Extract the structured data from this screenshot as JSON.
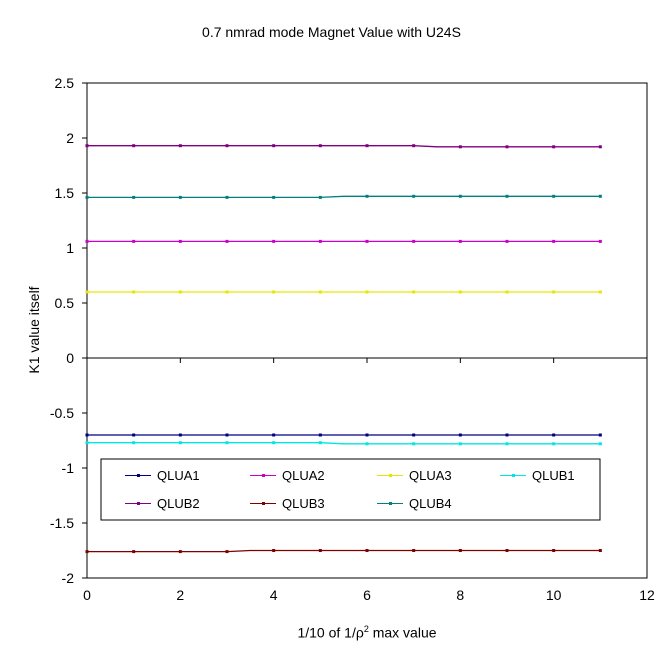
{
  "chart_data": {
    "type": "line",
    "title": "0.7 nmrad mode Magnet Value with U24S",
    "xlabel_pre": "1/10 of 1/ρ",
    "xlabel_sup": "2",
    "xlabel_post": " max value",
    "ylabel": "K1 value itself",
    "xlim": [
      0,
      12
    ],
    "ylim": [
      -2,
      2.5
    ],
    "xticks": [
      0,
      2,
      4,
      6,
      8,
      10,
      12
    ],
    "yticks": [
      -2,
      -1.5,
      -1,
      -0.5,
      0,
      0.5,
      1,
      1.5,
      2,
      2.5
    ],
    "ytick_labels": [
      "-2",
      "-1.5",
      "-1",
      "-0.5",
      "0",
      "0.5",
      "1",
      "1.5",
      "2",
      "2.5"
    ],
    "grid": false,
    "legend_position": "lower-center",
    "x": [
      0,
      0.5,
      1,
      1.5,
      2,
      2.5,
      3,
      3.5,
      4,
      4.5,
      5,
      5.5,
      6,
      6.5,
      7,
      7.5,
      8,
      8.5,
      9,
      9.5,
      10,
      10.5,
      11
    ],
    "series": [
      {
        "name": "QLUA1",
        "color": "#000080",
        "values": [
          -0.7,
          -0.7,
          -0.7,
          -0.7,
          -0.7,
          -0.7,
          -0.7,
          -0.7,
          -0.7,
          -0.7,
          -0.7,
          -0.7,
          -0.7,
          -0.7,
          -0.7,
          -0.7,
          -0.7,
          -0.7,
          -0.7,
          -0.7,
          -0.7,
          -0.7,
          -0.7
        ]
      },
      {
        "name": "QLUA2",
        "color": "#cc00cc",
        "values": [
          1.06,
          1.06,
          1.06,
          1.06,
          1.06,
          1.06,
          1.06,
          1.06,
          1.06,
          1.06,
          1.06,
          1.06,
          1.06,
          1.06,
          1.06,
          1.06,
          1.06,
          1.06,
          1.06,
          1.06,
          1.06,
          1.06,
          1.06
        ]
      },
      {
        "name": "QLUA3",
        "color": "#e6e600",
        "values": [
          0.6,
          0.6,
          0.6,
          0.6,
          0.6,
          0.6,
          0.6,
          0.6,
          0.6,
          0.6,
          0.6,
          0.6,
          0.6,
          0.6,
          0.6,
          0.6,
          0.6,
          0.6,
          0.6,
          0.6,
          0.6,
          0.6,
          0.6
        ]
      },
      {
        "name": "QLUB1",
        "color": "#00e5e5",
        "values": [
          -0.77,
          -0.77,
          -0.77,
          -0.77,
          -0.77,
          -0.77,
          -0.77,
          -0.77,
          -0.77,
          -0.77,
          -0.77,
          -0.78,
          -0.78,
          -0.78,
          -0.78,
          -0.78,
          -0.78,
          -0.78,
          -0.78,
          -0.78,
          -0.78,
          -0.78,
          -0.78
        ]
      },
      {
        "name": "QLUB2",
        "color": "#800080",
        "values": [
          1.93,
          1.93,
          1.93,
          1.93,
          1.93,
          1.93,
          1.93,
          1.93,
          1.93,
          1.93,
          1.93,
          1.93,
          1.93,
          1.93,
          1.93,
          1.92,
          1.92,
          1.92,
          1.92,
          1.92,
          1.92,
          1.92,
          1.92
        ]
      },
      {
        "name": "QLUB3",
        "color": "#800000",
        "values": [
          -1.76,
          -1.76,
          -1.76,
          -1.76,
          -1.76,
          -1.76,
          -1.76,
          -1.75,
          -1.75,
          -1.75,
          -1.75,
          -1.75,
          -1.75,
          -1.75,
          -1.75,
          -1.75,
          -1.75,
          -1.75,
          -1.75,
          -1.75,
          -1.75,
          -1.75,
          -1.75
        ]
      },
      {
        "name": "QLUB4",
        "color": "#008080",
        "values": [
          1.46,
          1.46,
          1.46,
          1.46,
          1.46,
          1.46,
          1.46,
          1.46,
          1.46,
          1.46,
          1.46,
          1.47,
          1.47,
          1.47,
          1.47,
          1.47,
          1.47,
          1.47,
          1.47,
          1.47,
          1.47,
          1.47,
          1.47
        ]
      }
    ]
  }
}
